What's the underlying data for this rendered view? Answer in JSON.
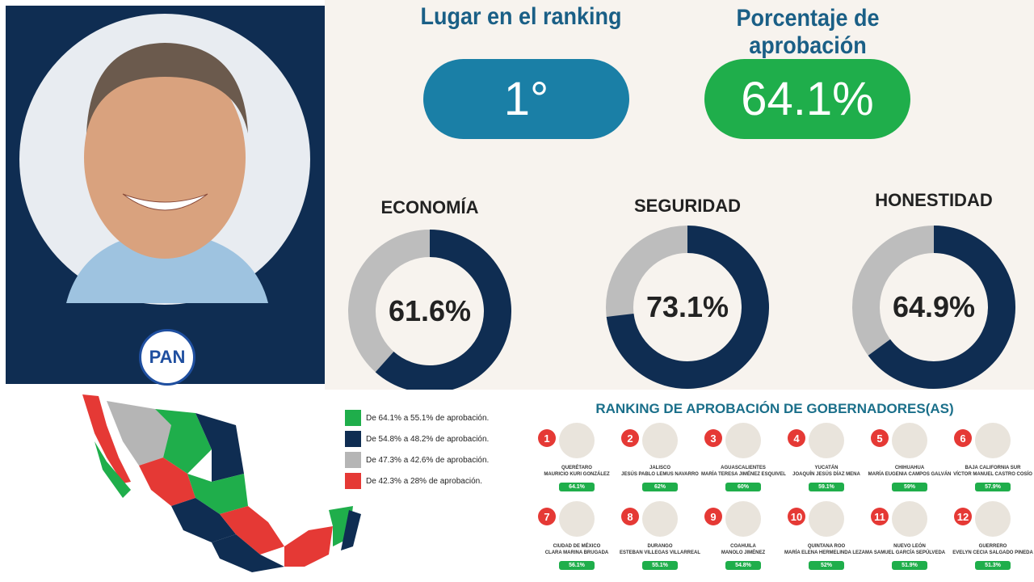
{
  "profile": {
    "party": "PAN"
  },
  "ranking_box": {
    "title": "Lugar en el ranking",
    "value": "1°"
  },
  "approval_box": {
    "title": "Porcentaje de aprobación",
    "value": "64.1%"
  },
  "chart_data": [
    {
      "type": "donut",
      "title": "ECONOMÍA",
      "values": [
        61.6
      ],
      "value_labels": [
        "61.6%"
      ],
      "color": "#0f2d52",
      "rest_color": "#bdbdbd",
      "ylim": [
        0,
        100
      ]
    },
    {
      "type": "donut",
      "title": "SEGURIDAD",
      "values": [
        73.1
      ],
      "value_labels": [
        "73.1%"
      ],
      "color": "#0f2d52",
      "rest_color": "#bdbdbd",
      "ylim": [
        0,
        100
      ]
    },
    {
      "type": "donut",
      "title": "HONESTIDAD",
      "values": [
        64.9
      ],
      "value_labels": [
        "64.9%"
      ],
      "color": "#0f2d52",
      "rest_color": "#bdbdbd",
      "ylim": [
        0,
        100
      ]
    }
  ],
  "map_legend": [
    {
      "label": "De 64.1% a 55.1% de aprobación.",
      "color": "#1fae4b"
    },
    {
      "label": "De 54.8% a 48.2% de aprobación.",
      "color": "#0f2d52"
    },
    {
      "label": "De 47.3% a 42.6% de aprobación.",
      "color": "#b5b5b5"
    },
    {
      "label": "De 42.3% a 28% de aprobación.",
      "color": "#e53935"
    }
  ],
  "governors": {
    "title": "RANKING DE APROBACIÓN DE GOBERNADORES(AS)",
    "items": [
      {
        "rank": "1",
        "state": "QUERÉTARO",
        "name": "MAURICIO KURI GONZÁLEZ",
        "approval": "64.1%"
      },
      {
        "rank": "2",
        "state": "JALISCO",
        "name": "JESÚS PABLO LEMUS NAVARRO",
        "approval": "62%"
      },
      {
        "rank": "3",
        "state": "AGUASCALIENTES",
        "name": "MARÍA TERESA JIMÉNEZ ESQUIVEL",
        "approval": "60%"
      },
      {
        "rank": "4",
        "state": "YUCATÁN",
        "name": "JOAQUÍN JESÚS DÍAZ MENA",
        "approval": "59.1%"
      },
      {
        "rank": "5",
        "state": "CHIHUAHUA",
        "name": "MARÍA EUGENIA CAMPOS GALVÁN",
        "approval": "59%"
      },
      {
        "rank": "6",
        "state": "BAJA CALIFORNIA SUR",
        "name": "VÍCTOR MANUEL CASTRO COSÍO",
        "approval": "57.9%"
      },
      {
        "rank": "7",
        "state": "CIUDAD DE MÉXICO",
        "name": "CLARA MARINA BRUGADA",
        "approval": "56.1%"
      },
      {
        "rank": "8",
        "state": "DURANGO",
        "name": "ESTEBAN VILLEGAS VILLARREAL",
        "approval": "55.1%"
      },
      {
        "rank": "9",
        "state": "COAHUILA",
        "name": "MANOLO JIMÉNEZ",
        "approval": "54.8%"
      },
      {
        "rank": "10",
        "state": "QUINTANA ROO",
        "name": "MARÍA ELENA HERMELINDA LEZAMA",
        "approval": "52%"
      },
      {
        "rank": "11",
        "state": "NUEVO LEÓN",
        "name": "SAMUEL GARCÍA SEPÚLVEDA",
        "approval": "51.9%"
      },
      {
        "rank": "12",
        "state": "GUERRERO",
        "name": "EVELYN CECIA SALGADO PINEDA",
        "approval": "51.3%"
      }
    ]
  }
}
